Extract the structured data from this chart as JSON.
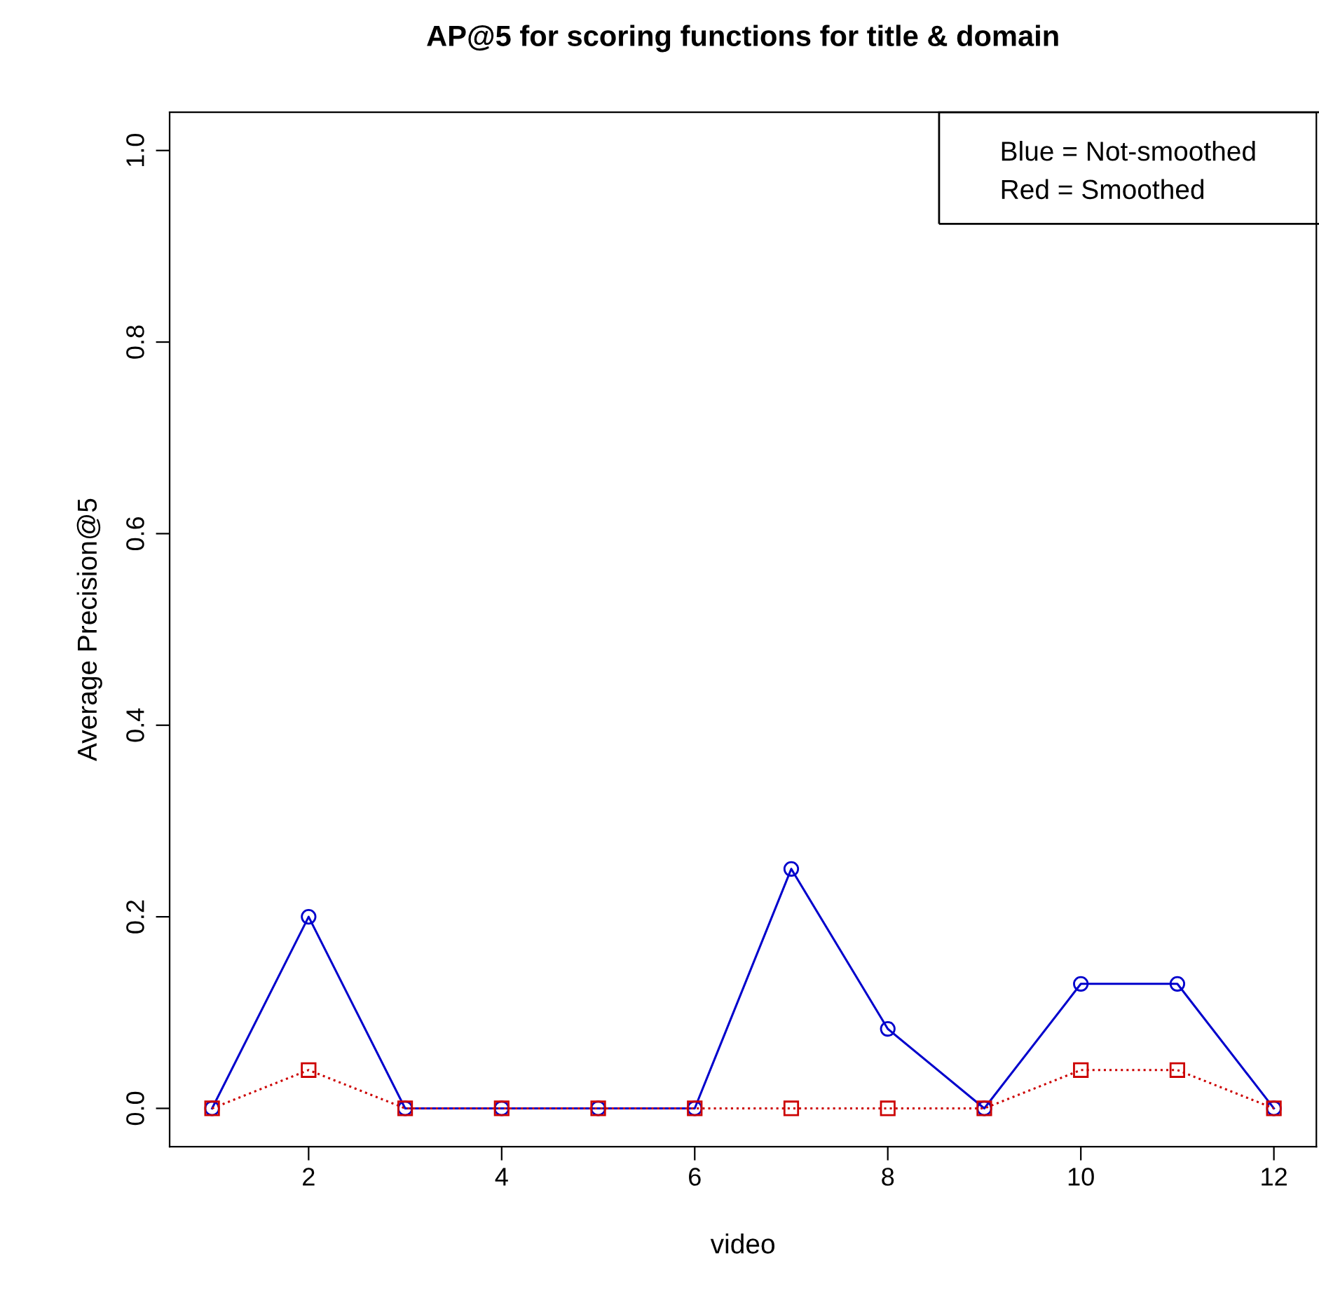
{
  "chart_data": {
    "type": "line",
    "title": "AP@5 for scoring functions for title & domain",
    "xlabel": "video",
    "ylabel": "Average Precision@5",
    "x": [
      1,
      2,
      3,
      4,
      5,
      6,
      7,
      8,
      9,
      10,
      11,
      12
    ],
    "series": [
      {
        "color": "#0000cc",
        "marker": "circle",
        "line_style": "solid",
        "values": [
          0,
          0.2,
          0,
          0,
          0,
          0,
          0.25,
          0.083,
          0,
          0.13,
          0.13,
          0
        ]
      },
      {
        "color": "#cc0000",
        "marker": "square",
        "line_style": "dotted",
        "values": [
          0,
          0.04,
          0,
          0,
          0,
          0,
          0,
          0,
          0,
          0.04,
          0.04,
          0
        ]
      }
    ],
    "xlim": [
      0.56,
      12.44
    ],
    "ylim": [
      -0.04,
      1.04
    ],
    "xticks": [
      2,
      4,
      6,
      8,
      10,
      12
    ],
    "yticks": [
      {
        "value": 0,
        "label": "0.0"
      },
      0.2,
      0.4,
      0.6,
      0.8,
      {
        "value": 1,
        "label": "1.0"
      }
    ],
    "grid": false,
    "annotations": [
      "Blue = Not-smoothed",
      "Red = Smoothed"
    ]
  }
}
